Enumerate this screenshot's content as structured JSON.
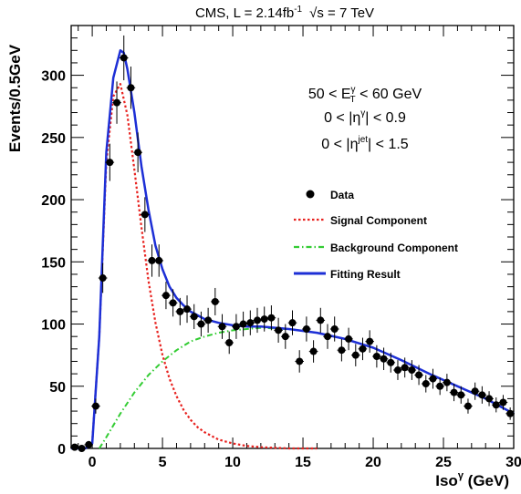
{
  "chart_data": {
    "type": "scatter",
    "title": "CMS, L = 2.14fb",
    "title_sup": "-1",
    "title_sqrt": "√s",
    "title_energy": " = 7 TeV",
    "ylabel": "Events/0.5GeV",
    "xlabel_main": "Iso",
    "xlabel_sup": "γ",
    "xlabel_unit": " (GeV)",
    "xlim": [
      -1.5,
      30
    ],
    "ylim": [
      0,
      340
    ],
    "x_ticks": [
      0,
      5,
      10,
      15,
      20,
      25,
      30
    ],
    "y_ticks": [
      0,
      50,
      100,
      150,
      200,
      250,
      300
    ],
    "cuts": [
      {
        "pre": "50 < E",
        "sup": "γ",
        "sub": "T",
        "post": " < 60 GeV"
      },
      {
        "pre": "0 < |η",
        "sup": "γ",
        "sub": "",
        "post": "| < 0.9"
      },
      {
        "pre": "0 < |η",
        "sup": "jet",
        "sub": "",
        "post": "| < 1.5"
      }
    ],
    "legend": [
      {
        "label": "Data",
        "kind": "marker",
        "color": "#000000"
      },
      {
        "label": "Signal Component",
        "kind": "dotted",
        "color": "#e8221f"
      },
      {
        "label": "Background Component",
        "kind": "dashdot",
        "color": "#33cc33"
      },
      {
        "label": "Fitting Result",
        "kind": "solid",
        "color": "#1d2fd6"
      }
    ],
    "data_points": {
      "x": [
        -1.25,
        -0.75,
        -0.25,
        0.25,
        0.75,
        1.25,
        1.75,
        2.25,
        2.75,
        3.25,
        3.75,
        4.25,
        4.75,
        5.25,
        5.75,
        6.25,
        6.75,
        7.25,
        7.75,
        8.25,
        8.75,
        9.25,
        9.75,
        10.25,
        10.75,
        11.25,
        11.75,
        12.25,
        12.75,
        13.25,
        13.75,
        14.25,
        14.75,
        15.25,
        15.75,
        16.25,
        16.75,
        17.25,
        17.75,
        18.25,
        18.75,
        19.25,
        19.75,
        20.25,
        20.75,
        21.25,
        21.75,
        22.25,
        22.75,
        23.25,
        23.75,
        24.25,
        24.75,
        25.25,
        25.75,
        26.25,
        26.75,
        27.25,
        27.75,
        28.25,
        28.75,
        29.25,
        29.75
      ],
      "y": [
        1,
        0,
        3,
        34,
        137,
        230,
        278,
        314,
        290,
        238,
        188,
        151,
        151,
        123,
        117,
        110,
        112,
        106,
        100,
        103,
        118,
        98,
        85,
        98,
        100,
        101,
        103,
        104,
        105,
        95,
        90,
        101,
        70,
        96,
        78,
        103,
        90,
        96,
        79,
        88,
        75,
        80,
        86,
        74,
        72,
        69,
        63,
        65,
        63,
        59,
        52,
        56,
        50,
        53,
        45,
        43,
        34,
        46,
        43,
        40,
        35,
        37,
        28
      ],
      "err_up": [
        2,
        1,
        3,
        6,
        12,
        15,
        17,
        18,
        17,
        16,
        14,
        13,
        13,
        11,
        11,
        11,
        11,
        10,
        10,
        10,
        11,
        10,
        9,
        10,
        10,
        10,
        10,
        10,
        10,
        10,
        10,
        10,
        9,
        10,
        9,
        10,
        10,
        10,
        9,
        9,
        9,
        9,
        9,
        9,
        9,
        8,
        8,
        8,
        8,
        8,
        7,
        8,
        7,
        7,
        7,
        7,
        6,
        7,
        7,
        6,
        6,
        6,
        5
      ],
      "err_down": [
        1,
        0,
        2,
        6,
        12,
        15,
        17,
        18,
        17,
        16,
        14,
        13,
        13,
        11,
        11,
        11,
        11,
        10,
        10,
        10,
        11,
        10,
        9,
        10,
        10,
        10,
        10,
        10,
        10,
        10,
        10,
        10,
        9,
        10,
        9,
        10,
        10,
        10,
        9,
        9,
        9,
        9,
        9,
        9,
        9,
        8,
        8,
        8,
        8,
        8,
        7,
        8,
        7,
        7,
        7,
        7,
        6,
        7,
        7,
        6,
        6,
        6,
        5
      ]
    },
    "signal_component": {
      "x": [
        0.0,
        0.5,
        1.0,
        1.5,
        2.0,
        2.5,
        3.0,
        3.5,
        4.0,
        4.5,
        5.0,
        5.5,
        6.0,
        6.5,
        7.0,
        7.5,
        8.0,
        9.0,
        10.0,
        11.0,
        12.0,
        14.0,
        16.0
      ],
      "y": [
        5,
        90,
        230,
        283,
        293,
        268,
        224,
        178,
        135,
        101,
        75,
        56,
        42,
        31,
        23,
        17,
        13,
        7,
        4,
        2,
        1,
        0,
        0
      ]
    },
    "background_component": {
      "x": [
        0.5,
        1.0,
        2.0,
        3.0,
        4.0,
        5.0,
        6.0,
        7.0,
        8.0,
        9.0,
        10.0,
        11.0,
        12.0,
        14.0,
        16.0,
        18.0,
        20.0,
        22.0,
        24.0,
        26.0,
        28.0,
        30.0
      ],
      "y": [
        0,
        9,
        28,
        45,
        59,
        70,
        79,
        86,
        90,
        93,
        95,
        96,
        97,
        96,
        93,
        88,
        81,
        71,
        60,
        50,
        40,
        28
      ]
    },
    "fitting_result": {
      "x": [
        -1.5,
        -1.0,
        -0.5,
        0.0,
        0.5,
        1.0,
        1.5,
        2.0,
        2.25,
        2.5,
        3.0,
        3.5,
        4.0,
        4.5,
        5.0,
        5.5,
        6.0,
        6.5,
        7.0,
        7.5,
        8.0,
        9.0,
        10.0,
        11.0,
        12.0,
        14.0,
        16.0,
        18.0,
        20.0,
        22.0,
        24.0,
        26.0,
        28.0,
        30.0
      ],
      "y": [
        0,
        0,
        0,
        4,
        90,
        238,
        298,
        320,
        318,
        305,
        270,
        227,
        192,
        163,
        144,
        130,
        121,
        115,
        110,
        107,
        104,
        101,
        99,
        98,
        98,
        96,
        93,
        88,
        81,
        71,
        60,
        50,
        40,
        28
      ]
    }
  }
}
